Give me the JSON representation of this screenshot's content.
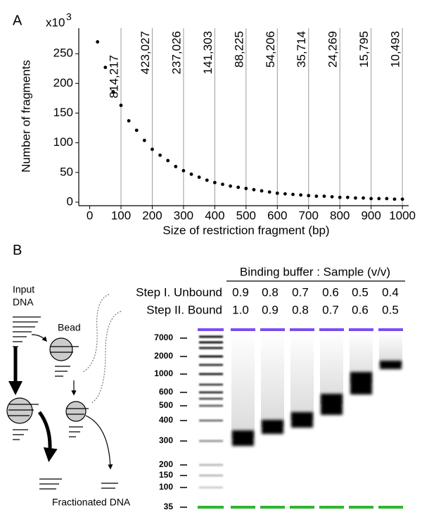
{
  "panel_labels": [
    "A",
    "B"
  ],
  "chart_data": {
    "type": "scatter",
    "y_multiplier": {
      "base": "x10",
      "exponent": "3"
    },
    "x_label": "Size of restriction fragment (bp)",
    "y_label": "Number of fragments",
    "x": [
      25,
      50,
      75,
      100,
      125,
      150,
      175,
      200,
      225,
      250,
      275,
      300,
      325,
      350,
      375,
      400,
      425,
      450,
      475,
      500,
      525,
      550,
      575,
      600,
      625,
      650,
      675,
      700,
      725,
      750,
      775,
      800,
      825,
      850,
      875,
      900,
      925,
      950,
      975,
      1000
    ],
    "values": [
      270,
      227,
      186,
      163,
      137,
      121,
      104,
      89,
      79,
      70,
      60,
      53,
      47,
      42,
      37,
      33,
      30,
      27,
      25,
      23,
      21,
      19,
      17,
      15,
      14,
      13,
      12,
      11,
      10,
      10,
      9,
      8,
      8,
      7,
      7,
      6,
      6,
      6,
      5,
      5
    ],
    "color": "#000000",
    "xlim": [
      -35,
      1020
    ],
    "ylim": [
      -6,
      293
    ],
    "xticks": [
      0,
      100,
      200,
      300,
      400,
      500,
      600,
      700,
      800,
      900,
      1000
    ],
    "yticks": [
      0,
      50,
      100,
      150,
      200,
      250
    ],
    "annotations": [
      {
        "x": 100,
        "label": "814,217"
      },
      {
        "x": 200,
        "label": "423,027"
      },
      {
        "x": 300,
        "label": "237,026"
      },
      {
        "x": 400,
        "label": "141,303"
      },
      {
        "x": 500,
        "label": "88,225"
      },
      {
        "x": 600,
        "label": "54,206"
      },
      {
        "x": 700,
        "label": "35,714"
      },
      {
        "x": 800,
        "label": "24,269"
      },
      {
        "x": 900,
        "label": "15,795"
      },
      {
        "x": 1000,
        "label": "10,493"
      }
    ],
    "annotation_line_color": "#9a9a9a"
  },
  "panel_b": {
    "diagram": {
      "input": [
        "Input",
        "DNA"
      ],
      "bead": "Bead",
      "output": "Fractionated DNA"
    },
    "table": {
      "title": "Binding buffer : Sample (v/v)",
      "rows": [
        {
          "label": "Step I. Unbound",
          "values": [
            "0.9",
            "0.8",
            "0.7",
            "0.6",
            "0.5",
            "0.4"
          ]
        },
        {
          "label": "Step II. Bound",
          "values": [
            "1.0",
            "0.9",
            "0.8",
            "0.7",
            "0.6",
            "0.5"
          ]
        }
      ]
    },
    "ladder": [
      7000,
      2000,
      1000,
      600,
      500,
      400,
      300,
      200,
      150,
      100,
      35
    ]
  }
}
